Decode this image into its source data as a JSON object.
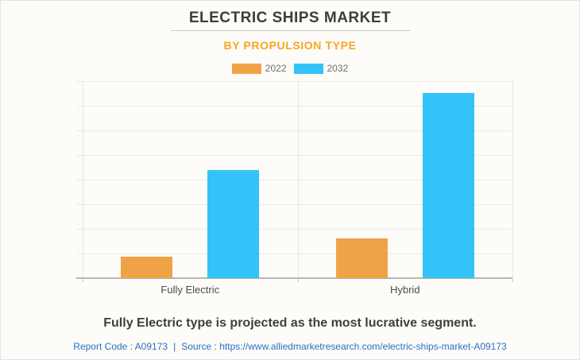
{
  "header": {
    "title": "ELECTRIC SHIPS MARKET",
    "subtitle": "BY PROPULSION TYPE"
  },
  "chart_data": {
    "type": "bar",
    "title": "ELECTRIC SHIPS MARKET",
    "subtitle": "BY PROPULSION TYPE",
    "categories": [
      "Fully Electric",
      "Hybrid"
    ],
    "series": [
      {
        "name": "2022",
        "color": "#F0A346",
        "values": [
          11,
          20
        ]
      },
      {
        "name": "2032",
        "color": "#33C3F8",
        "values": [
          55,
          94
        ]
      }
    ],
    "values_note": "relative bar heights, % of plot height; no y-axis tick labels are shown in the chart",
    "ylim": [
      0,
      100
    ],
    "y_axis_tick_labels_visible": false,
    "grid": true,
    "horizontal_gridline_count": 9,
    "legend_position": "top"
  },
  "note": "Fully Electric type is projected as the most lucrative segment.",
  "footer": {
    "report_code": "Report Code : A09173",
    "separator": "|",
    "source_label": "Source :",
    "source_url": "https://www.alliedmarketresearch.com/electric-ships-market-A09173"
  },
  "colors": {
    "subtitle_accent": "#F9A51D",
    "series_2022": "#F0A346",
    "series_2032": "#33C3F8",
    "footer_link": "#2B6FC7",
    "background": "#FDFCF8"
  }
}
